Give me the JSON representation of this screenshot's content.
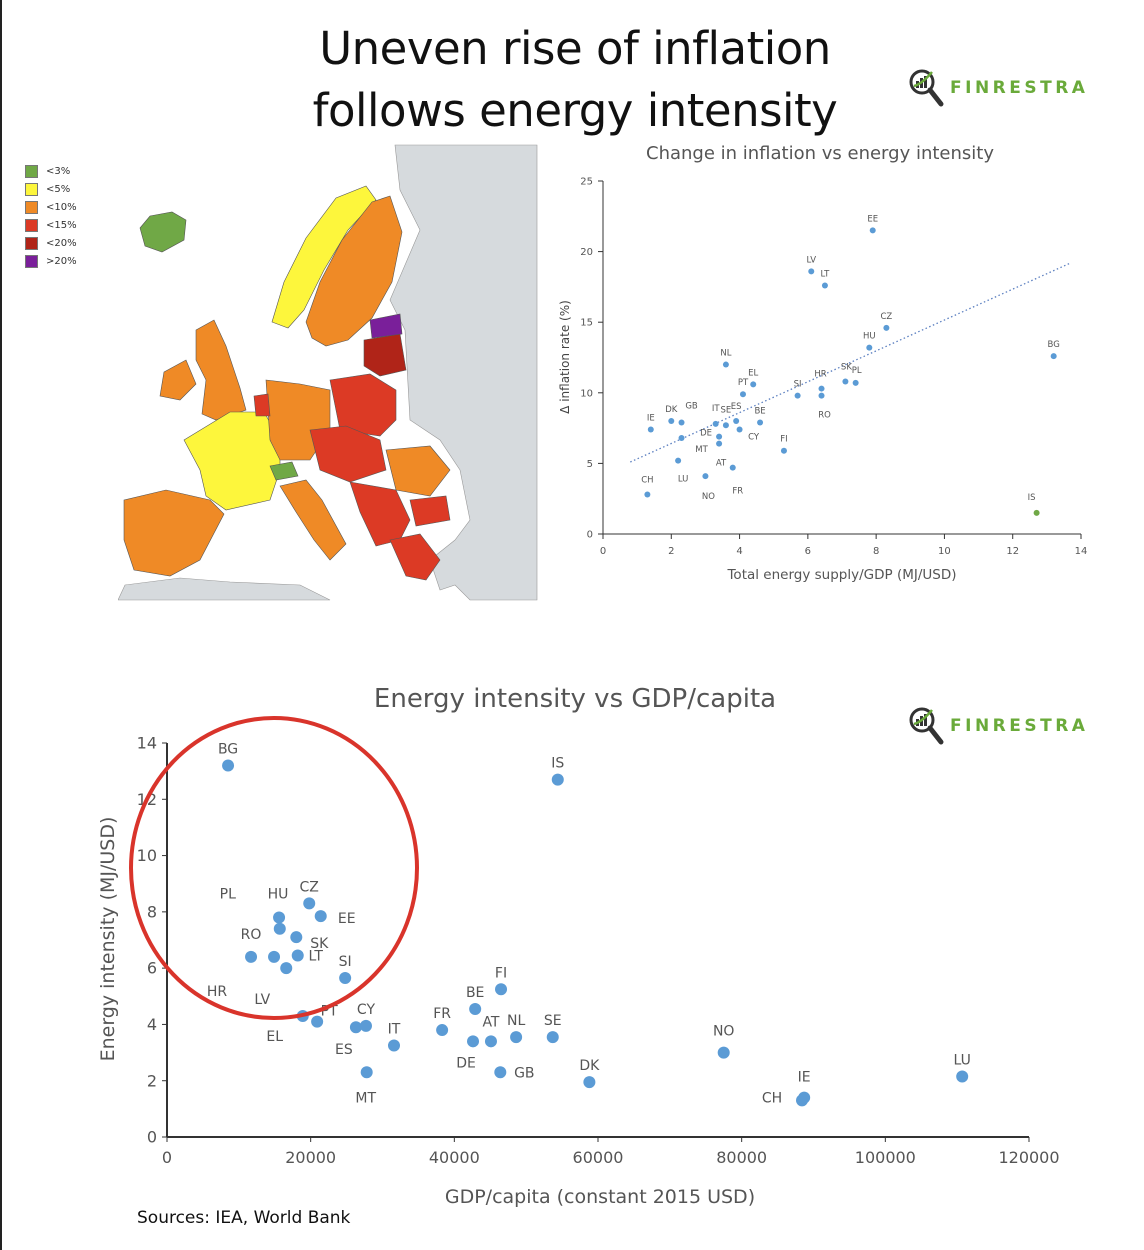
{
  "title_line1": "Uneven rise of inflation",
  "title_line2": "follows energy intensity",
  "brand": "FINRESTRA",
  "brand_icon": "magnifier-chart-icon",
  "map_legend": [
    {
      "label": "<3%",
      "color": "#70a846"
    },
    {
      "label": "<5%",
      "color": "#fdf63c"
    },
    {
      "label": "<10%",
      "color": "#ef8a26"
    },
    {
      "label": "<15%",
      "color": "#dc3a25"
    },
    {
      "label": ">20%",
      "color": "#7a1f9a"
    }
  ],
  "map_legend_extra": {
    "label": "<20%",
    "color": "#b02418"
  },
  "sources": "Sources: IEA, World Bank",
  "chart_data": [
    {
      "type": "scatter",
      "title": "Change in inflation vs energy intensity",
      "xlabel": "Total energy supply/GDP (MJ/USD)",
      "ylabel": "Δ inflation rate (%)",
      "xlim": [
        0,
        14
      ],
      "ylim": [
        0,
        25
      ],
      "xticks": [
        "0",
        "2",
        "4",
        "6",
        "8",
        "10",
        "12",
        "14"
      ],
      "yticks": [
        "0",
        "5",
        "10",
        "15",
        "20",
        "25"
      ],
      "grid": false,
      "trendline": {
        "style": "dotted",
        "from": [
          0.8,
          5.1
        ],
        "to": [
          13.7,
          19.2
        ]
      },
      "colors": {
        "default": "#5b9bd5",
        "highlight": "#70a846"
      },
      "points": [
        {
          "label": "EE",
          "x": 7.9,
          "y": 21.5
        },
        {
          "label": "LV",
          "x": 6.1,
          "y": 18.6
        },
        {
          "label": "LT",
          "x": 6.5,
          "y": 17.6
        },
        {
          "label": "CZ",
          "x": 8.3,
          "y": 14.6
        },
        {
          "label": "HU",
          "x": 7.8,
          "y": 13.2
        },
        {
          "label": "BG",
          "x": 13.2,
          "y": 12.6
        },
        {
          "label": "NL",
          "x": 3.6,
          "y": 12.0
        },
        {
          "label": "EL",
          "x": 4.4,
          "y": 10.6
        },
        {
          "label": "PT",
          "x": 4.1,
          "y": 9.9
        },
        {
          "label": "SI",
          "x": 5.7,
          "y": 9.8
        },
        {
          "label": "HR",
          "x": 6.4,
          "y": 10.3
        },
        {
          "label": "RO",
          "x": 6.4,
          "y": 9.8
        },
        {
          "label": "SK",
          "x": 7.1,
          "y": 10.8
        },
        {
          "label": "PL",
          "x": 7.4,
          "y": 10.7
        },
        {
          "label": "IE",
          "x": 1.4,
          "y": 7.4
        },
        {
          "label": "DK",
          "x": 2.0,
          "y": 8.0
        },
        {
          "label": "GB",
          "x": 2.3,
          "y": 7.9
        },
        {
          "label": "IT",
          "x": 3.3,
          "y": 7.8
        },
        {
          "label": "SE",
          "x": 3.6,
          "y": 7.7
        },
        {
          "label": "ES",
          "x": 3.9,
          "y": 8.0
        },
        {
          "label": "BE",
          "x": 4.6,
          "y": 7.9
        },
        {
          "label": "DE",
          "x": 3.4,
          "y": 6.9
        },
        {
          "label": "AT",
          "x": 3.4,
          "y": 6.4
        },
        {
          "label": "MT",
          "x": 2.3,
          "y": 6.8
        },
        {
          "label": "CY",
          "x": 4.0,
          "y": 7.4
        },
        {
          "label": "FI",
          "x": 5.3,
          "y": 5.9
        },
        {
          "label": "LU",
          "x": 2.2,
          "y": 5.2
        },
        {
          "label": "FR",
          "x": 3.8,
          "y": 4.7
        },
        {
          "label": "NO",
          "x": 3.0,
          "y": 4.1
        },
        {
          "label": "CH",
          "x": 1.3,
          "y": 2.8
        },
        {
          "label": "IS",
          "x": 12.7,
          "y": 1.5,
          "highlight": true
        }
      ]
    },
    {
      "type": "scatter",
      "title": "Energy intensity vs GDP/capita",
      "xlabel": "GDP/capita (constant 2015 USD)",
      "ylabel": "Energy intensity (MJ/USD)",
      "xlim": [
        0,
        120000
      ],
      "ylim": [
        0,
        14
      ],
      "xticks": [
        "0",
        "20000",
        "40000",
        "60000",
        "80000",
        "100000",
        "120000"
      ],
      "yticks": [
        "0",
        "2",
        "4",
        "6",
        "8",
        "10",
        "12",
        "14"
      ],
      "grid": false,
      "annotation": {
        "shape": "circle",
        "color": "#d9342b",
        "encloses": [
          "BG",
          "CZ",
          "HU",
          "PL",
          "EE",
          "SK",
          "RO",
          "HR",
          "LT",
          "LV",
          "SI"
        ]
      },
      "colors": {
        "default": "#5b9bd5"
      },
      "points": [
        {
          "label": "BG",
          "x": 8500,
          "y": 13.2
        },
        {
          "label": "IS",
          "x": 54400,
          "y": 12.7
        },
        {
          "label": "CZ",
          "x": 19800,
          "y": 8.3
        },
        {
          "label": "EE",
          "x": 21400,
          "y": 7.85
        },
        {
          "label": "HU",
          "x": 15600,
          "y": 7.8
        },
        {
          "label": "PL",
          "x": 15700,
          "y": 7.4
        },
        {
          "label": "SK",
          "x": 18000,
          "y": 7.1
        },
        {
          "label": "RO",
          "x": 11700,
          "y": 6.4
        },
        {
          "label": "HR",
          "x": 14900,
          "y": 6.4
        },
        {
          "label": "LT",
          "x": 18200,
          "y": 6.45
        },
        {
          "label": "LV",
          "x": 16600,
          "y": 6.0
        },
        {
          "label": "SI",
          "x": 24800,
          "y": 5.65
        },
        {
          "label": "EL",
          "x": 18900,
          "y": 4.3
        },
        {
          "label": "PT",
          "x": 20900,
          "y": 4.1
        },
        {
          "label": "ES",
          "x": 26300,
          "y": 3.9
        },
        {
          "label": "CY",
          "x": 27700,
          "y": 3.95
        },
        {
          "label": "IT",
          "x": 31600,
          "y": 3.25
        },
        {
          "label": "MT",
          "x": 27800,
          "y": 2.3
        },
        {
          "label": "FR",
          "x": 38300,
          "y": 3.8
        },
        {
          "label": "BE",
          "x": 42900,
          "y": 4.55
        },
        {
          "label": "FI",
          "x": 46500,
          "y": 5.25
        },
        {
          "label": "DE",
          "x": 42600,
          "y": 3.4
        },
        {
          "label": "AT",
          "x": 45100,
          "y": 3.4
        },
        {
          "label": "NL",
          "x": 48600,
          "y": 3.55
        },
        {
          "label": "GB",
          "x": 46400,
          "y": 2.3
        },
        {
          "label": "SE",
          "x": 53700,
          "y": 3.55
        },
        {
          "label": "DK",
          "x": 58800,
          "y": 1.95
        },
        {
          "label": "NO",
          "x": 77500,
          "y": 3.0
        },
        {
          "label": "CH",
          "x": 88400,
          "y": 1.3
        },
        {
          "label": "IE",
          "x": 88700,
          "y": 1.4
        },
        {
          "label": "LU",
          "x": 110700,
          "y": 2.15
        }
      ]
    }
  ]
}
